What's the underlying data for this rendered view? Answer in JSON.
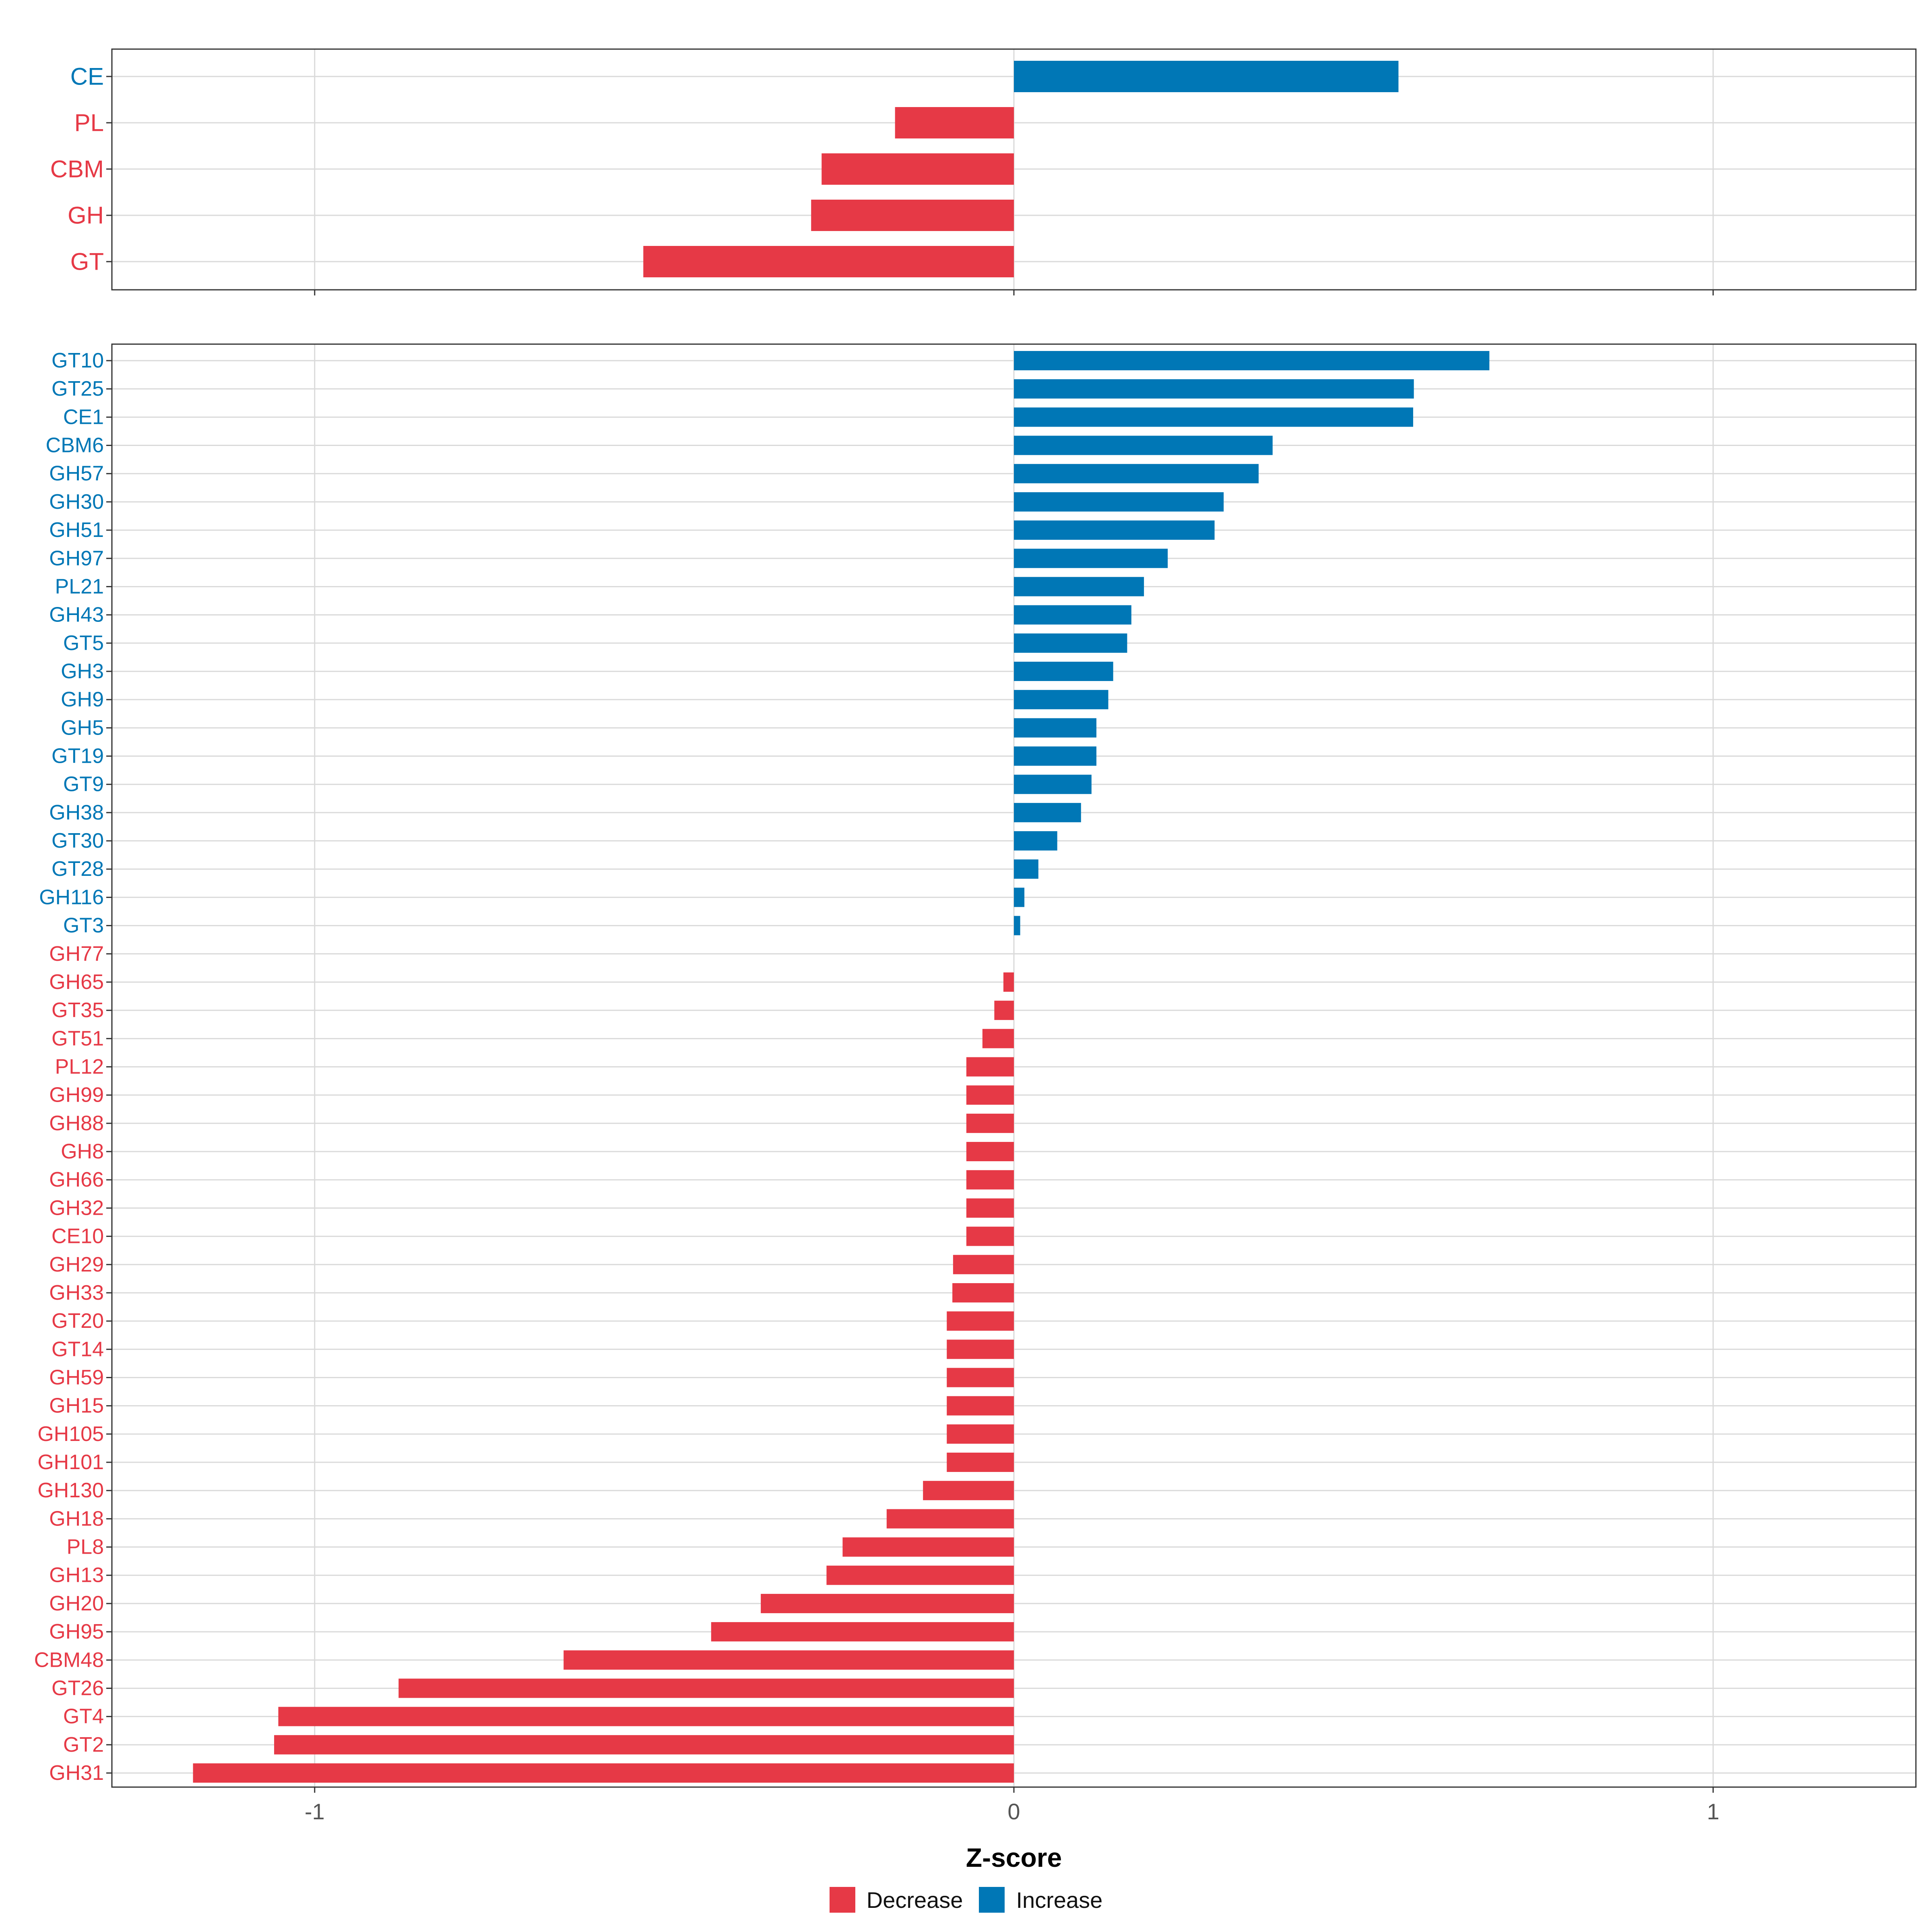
{
  "colors": {
    "decrease": "#E63946",
    "increase": "#0077B6",
    "grid": "#DADADA",
    "panel_border": "#333333",
    "tick_text": "#555555",
    "axis_title": "#000000"
  },
  "chart_data": [
    {
      "type": "bar",
      "orientation": "horizontal",
      "panel": "top",
      "categories": [
        "CE",
        "PL",
        "CBM",
        "GH",
        "GT"
      ],
      "values": [
        0.55,
        -0.17,
        -0.275,
        -0.29,
        -0.53
      ],
      "directions": [
        "Increase",
        "Decrease",
        "Decrease",
        "Decrease",
        "Decrease"
      ],
      "xlim": [
        -1.29,
        1.29
      ],
      "grid": true
    },
    {
      "type": "bar",
      "orientation": "horizontal",
      "panel": "bottom",
      "categories": [
        "GT10",
        "GT25",
        "CE1",
        "CBM6",
        "GH57",
        "GH30",
        "GH51",
        "GH97",
        "PL21",
        "GH43",
        "GT5",
        "GH3",
        "GH9",
        "GH5",
        "GT19",
        "GT9",
        "GH38",
        "GT30",
        "GT28",
        "GH116",
        "GT3",
        "GH77",
        "GH65",
        "GT35",
        "GT51",
        "PL12",
        "GH99",
        "GH88",
        "GH8",
        "GH66",
        "GH32",
        "CE10",
        "GH29",
        "GH33",
        "GT20",
        "GT14",
        "GH59",
        "GH15",
        "GH105",
        "GH101",
        "GH130",
        "GH18",
        "PL8",
        "GH13",
        "GH20",
        "GH95",
        "CBM48",
        "GT26",
        "GT4",
        "GT2",
        "GH31"
      ],
      "values": [
        0.68,
        0.572,
        0.571,
        0.37,
        0.35,
        0.3,
        0.287,
        0.22,
        0.186,
        0.168,
        0.162,
        0.142,
        0.135,
        0.118,
        0.118,
        0.111,
        0.096,
        0.062,
        0.035,
        0.015,
        0.009,
        0.0,
        -0.015,
        -0.028,
        -0.045,
        -0.068,
        -0.068,
        -0.068,
        -0.068,
        -0.068,
        -0.068,
        -0.068,
        -0.087,
        -0.088,
        -0.096,
        -0.096,
        -0.096,
        -0.096,
        -0.096,
        -0.096,
        -0.13,
        -0.182,
        -0.245,
        -0.268,
        -0.362,
        -0.433,
        -0.644,
        -0.88,
        -1.052,
        -1.058,
        -1.174
      ],
      "directions": [
        "Increase",
        "Increase",
        "Increase",
        "Increase",
        "Increase",
        "Increase",
        "Increase",
        "Increase",
        "Increase",
        "Increase",
        "Increase",
        "Increase",
        "Increase",
        "Increase",
        "Increase",
        "Increase",
        "Increase",
        "Increase",
        "Increase",
        "Increase",
        "Increase",
        "Decrease",
        "Decrease",
        "Decrease",
        "Decrease",
        "Decrease",
        "Decrease",
        "Decrease",
        "Decrease",
        "Decrease",
        "Decrease",
        "Decrease",
        "Decrease",
        "Decrease",
        "Decrease",
        "Decrease",
        "Decrease",
        "Decrease",
        "Decrease",
        "Decrease",
        "Decrease",
        "Decrease",
        "Decrease",
        "Decrease",
        "Decrease",
        "Decrease",
        "Decrease",
        "Decrease",
        "Decrease",
        "Decrease",
        "Decrease"
      ],
      "xlim": [
        -1.29,
        1.29
      ],
      "x_ticks": [
        -1,
        0,
        1
      ],
      "x_tick_labels": [
        "-1",
        "0",
        "1"
      ],
      "xlabel": "Z-score",
      "grid": true
    }
  ],
  "legend": {
    "position": "bottom",
    "items": [
      {
        "label": "Decrease",
        "key": "decrease"
      },
      {
        "label": "Increase",
        "key": "increase"
      }
    ]
  }
}
